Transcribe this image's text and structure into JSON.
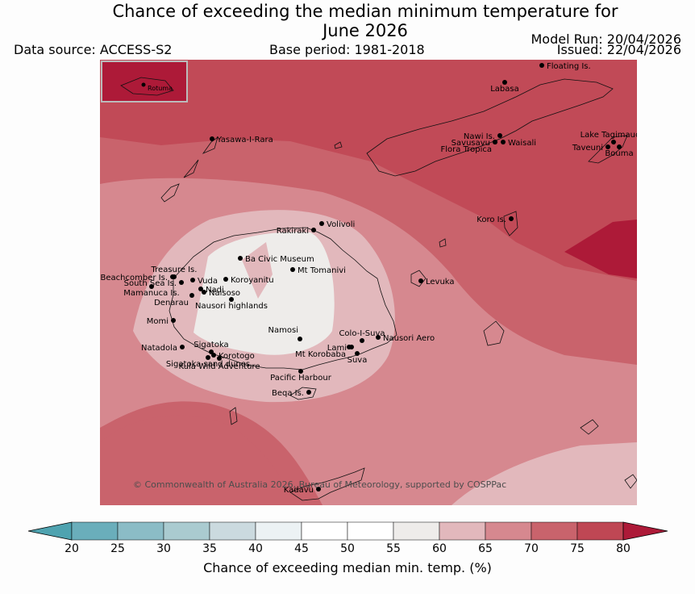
{
  "title_line1": "Chance of exceeding the median minimum temperature for",
  "title_line2": "June 2026",
  "data_source": "Data source: ACCESS-S2",
  "base_period": "Base period: 1981-2018",
  "model_run": "Model Run: 20/04/2026",
  "issued": "Issued: 22/04/2026",
  "copyright": "© Commonwealth of Australia 2026, Bureau of Meteorology, supported by COSPPac",
  "inset_label": "Rotuma",
  "places": [
    {
      "name": "Floating Is."
    },
    {
      "name": "Labasa"
    },
    {
      "name": "Nawi Is."
    },
    {
      "name": "Savusavu"
    },
    {
      "name": "Waisali"
    },
    {
      "name": "Flora Tropica"
    },
    {
      "name": "Lake Tagimaucia"
    },
    {
      "name": "Taveuni"
    },
    {
      "name": "Bouma"
    },
    {
      "name": "Yasawa-I-Rara"
    },
    {
      "name": "Volivoli"
    },
    {
      "name": "Rakiraki"
    },
    {
      "name": "Koro Is."
    },
    {
      "name": "Ba Civic Museum"
    },
    {
      "name": "Mt Tomanivi"
    },
    {
      "name": "Beachcomber Is."
    },
    {
      "name": "Treasure Is."
    },
    {
      "name": "South Sea Is."
    },
    {
      "name": "Vuda"
    },
    {
      "name": "Koroyanitu"
    },
    {
      "name": "Nadi"
    },
    {
      "name": "Mamanuca Is."
    },
    {
      "name": "Naisoso"
    },
    {
      "name": "Denarau"
    },
    {
      "name": "Levuka"
    },
    {
      "name": "Nausori highlands"
    },
    {
      "name": "Momi"
    },
    {
      "name": "Namosi"
    },
    {
      "name": "Colo-I-Suva"
    },
    {
      "name": "Nausori Aero"
    },
    {
      "name": "Lami"
    },
    {
      "name": "Natadola"
    },
    {
      "name": "Sigatoka"
    },
    {
      "name": "Mt Korobaba"
    },
    {
      "name": "Korotogo"
    },
    {
      "name": "Suva"
    },
    {
      "name": "Sigatoka sand dunes"
    },
    {
      "name": "Kula Wild Adventure"
    },
    {
      "name": "Pacific Harbour"
    },
    {
      "name": "Beqa Is."
    },
    {
      "name": "Kadavu"
    }
  ],
  "colorbar": {
    "label": "Chance of exceeding median min. temp. (%)",
    "ticks": [
      "20",
      "25",
      "30",
      "35",
      "40",
      "45",
      "50",
      "55",
      "60",
      "65",
      "70",
      "75",
      "80"
    ],
    "colors": [
      "#4fa3b0",
      "#6aaebb",
      "#8bbcc6",
      "#aacbd0",
      "#cbdadf",
      "#ecf2f4",
      "#ffffff",
      "#ffffff",
      "#eeecea",
      "#e2b8bc",
      "#d6888f",
      "#c9636c",
      "#bf4754",
      "#ad1a38"
    ]
  }
}
